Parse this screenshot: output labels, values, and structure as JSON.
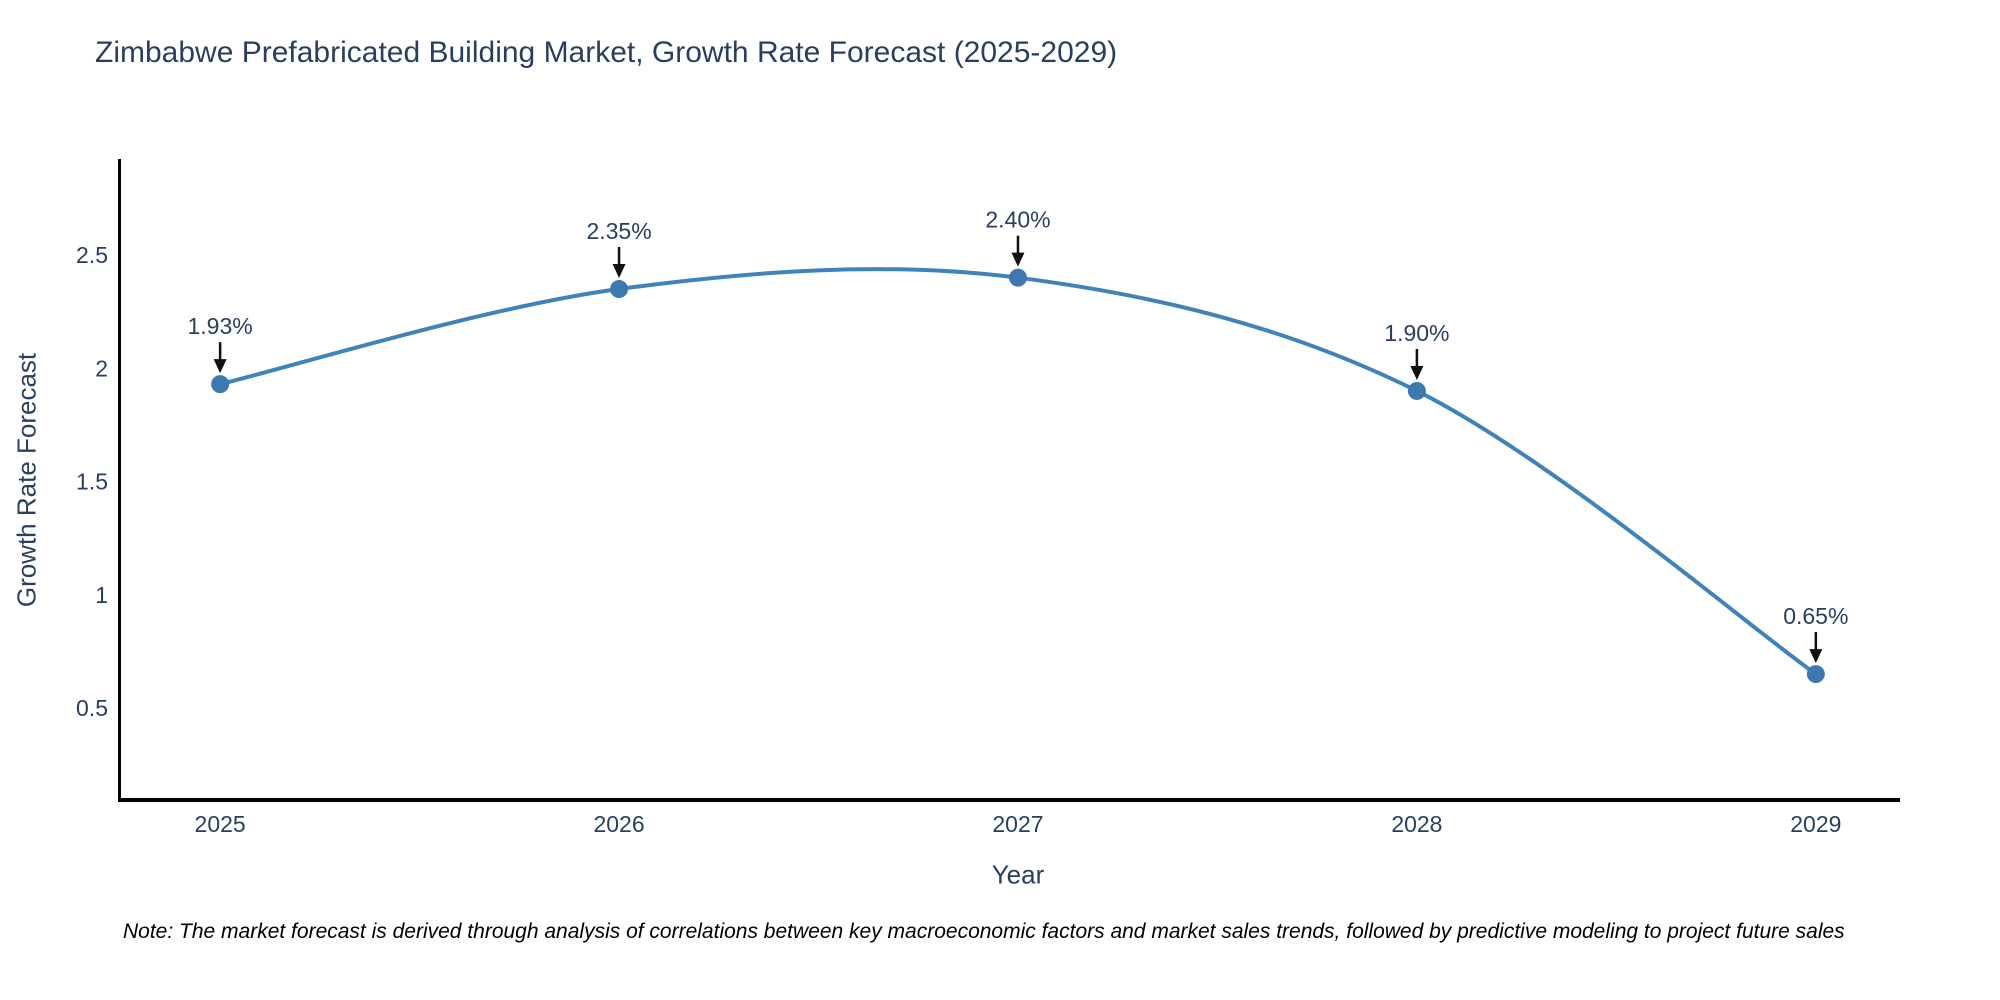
{
  "title": "Zimbabwe Prefabricated Building Market, Growth Rate Forecast (2025-2029)",
  "note": "Note: The market forecast is derived through analysis of correlations between key macroeconomic factors and market sales trends, followed by predictive modeling to project future sales",
  "chart_data": {
    "type": "line",
    "title": "Zimbabwe Prefabricated Building Market, Growth Rate Forecast (2025-2029)",
    "xlabel": "Year",
    "ylabel": "Growth Rate Forecast",
    "x": [
      2025,
      2026,
      2027,
      2028,
      2029
    ],
    "values": [
      1.93,
      2.35,
      2.4,
      1.9,
      0.65
    ],
    "point_labels": [
      "1.93%",
      "2.35%",
      "2.40%",
      "1.90%",
      "0.65%"
    ],
    "series_name": "Growth Rate Forecast",
    "line_shape": "spline",
    "markers": true,
    "grid": false,
    "legend": "none",
    "xticks": [
      "2025",
      "2026",
      "2027",
      "2028",
      "2029"
    ],
    "yticks": [
      0.5,
      1,
      1.5,
      2,
      2.5
    ],
    "ytick_labels": [
      "0.5",
      "1",
      "1.5",
      "2",
      "2.5"
    ],
    "xlim": [
      2024.744,
      2029.211
    ],
    "ylim": [
      0.094,
      2.924
    ],
    "colors": {
      "line": "#4083bb",
      "marker": "#3d79b0",
      "axis": "#000000",
      "tick_text": "#2a3f5f",
      "annotation_text": "#2a3f5f",
      "arrow": "#111111",
      "title_text": "#2a3f5f",
      "background": "#ffffff"
    }
  }
}
